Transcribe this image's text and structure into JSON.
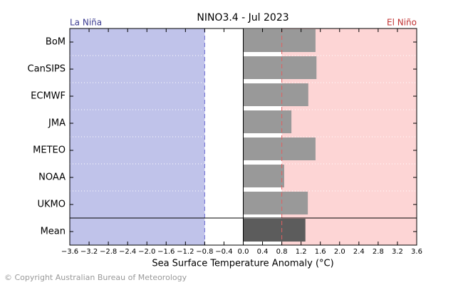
{
  "chart_data": {
    "type": "barh",
    "title": "NINO3.4 - Jul 2023",
    "xlabel": "Sea Surface Temperature Anomaly (°C)",
    "categories": [
      "BoM",
      "CanSIPS",
      "ECMWF",
      "JMA",
      "METEO",
      "NOAA",
      "UKMO"
    ],
    "values": [
      1.5,
      1.52,
      1.35,
      1.0,
      1.5,
      0.85,
      1.34
    ],
    "color": "#999999",
    "mean": {
      "label": "Mean",
      "value": 1.29,
      "color": "#5c5c5c"
    },
    "xlim": [
      -3.6,
      3.6
    ],
    "xticks": [
      {
        "value": -3.6,
        "label": "−3.6"
      },
      {
        "value": -3.2,
        "label": "−3.2"
      },
      {
        "value": -2.8,
        "label": "−2.8"
      },
      {
        "value": -2.4,
        "label": "−2.4"
      },
      {
        "value": -2.0,
        "label": "−2.0"
      },
      {
        "value": -1.6,
        "label": "−1.6"
      },
      {
        "value": -1.2,
        "label": "−1.2"
      },
      {
        "value": -0.8,
        "label": "−0.8"
      },
      {
        "value": -0.4,
        "label": "−0.4"
      },
      {
        "value": 0,
        "label": "0.0"
      },
      0.4,
      0.8,
      1.2,
      1.6,
      {
        "value": 2.0,
        "label": "2.0"
      },
      2.4,
      2.8,
      3.2,
      3.6
    ],
    "la_nina": {
      "label": "La Niña",
      "threshold": -0.8,
      "fill": "#c0c3ea",
      "line_color": "#6a6ad0",
      "text_color": "#3a3a90"
    },
    "el_nino": {
      "label": "El Niño",
      "threshold": 0.8,
      "fill": "#fdd5d5",
      "line_color": "#e06060",
      "text_color": "#c03030"
    }
  },
  "footer": {
    "copyright": "© Copyright Australian Bureau of Meteorology"
  }
}
